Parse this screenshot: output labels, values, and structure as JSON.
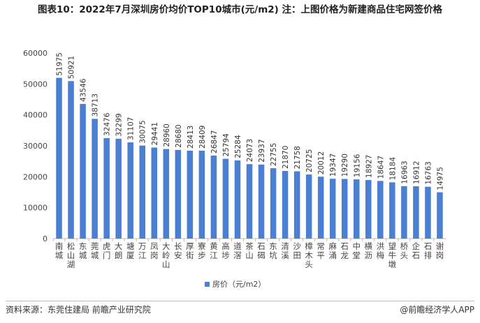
{
  "chart_data": {
    "type": "bar",
    "title": "图表10：2022年7月深圳房价均价TOP10城市(元/m2) 注：上图价格为新建商品住宅网签价格",
    "categories": [
      "南城",
      "松山湖",
      "东城",
      "莞城",
      "虎门",
      "大朗",
      "塘厦",
      "万江",
      "凤岗",
      "大岭山",
      "长安",
      "厚街",
      "寮步",
      "黄江",
      "高埗",
      "道滘",
      "茶山",
      "石碣",
      "东坑",
      "清溪",
      "沙田",
      "樟木头",
      "常平",
      "麻涌",
      "石龙",
      "中堂",
      "横沥",
      "洪梅",
      "望牛墩",
      "桥头",
      "企石",
      "石排",
      "谢岗"
    ],
    "series": [
      {
        "name": "房价（元/m2）",
        "values": [
          51975,
          50921,
          43546,
          38713,
          32476,
          32299,
          31107,
          30075,
          29441,
          28960,
          28680,
          28413,
          28409,
          26847,
          25794,
          25284,
          24073,
          23937,
          22755,
          21870,
          21758,
          20725,
          20012,
          19347,
          19290,
          19156,
          18927,
          18647,
          18184,
          16963,
          16912,
          16763,
          14975
        ]
      }
    ],
    "ylim": [
      0,
      60000
    ],
    "yticks": [
      0,
      10000,
      20000,
      30000,
      40000,
      50000,
      60000
    ],
    "grid": false,
    "legend": "bottom",
    "bar_color": "#4a7fd1"
  },
  "footer": {
    "source": "资料来源：东莞住建局 前瞻产业研究院",
    "brand": "@前瞻经济学人APP"
  }
}
